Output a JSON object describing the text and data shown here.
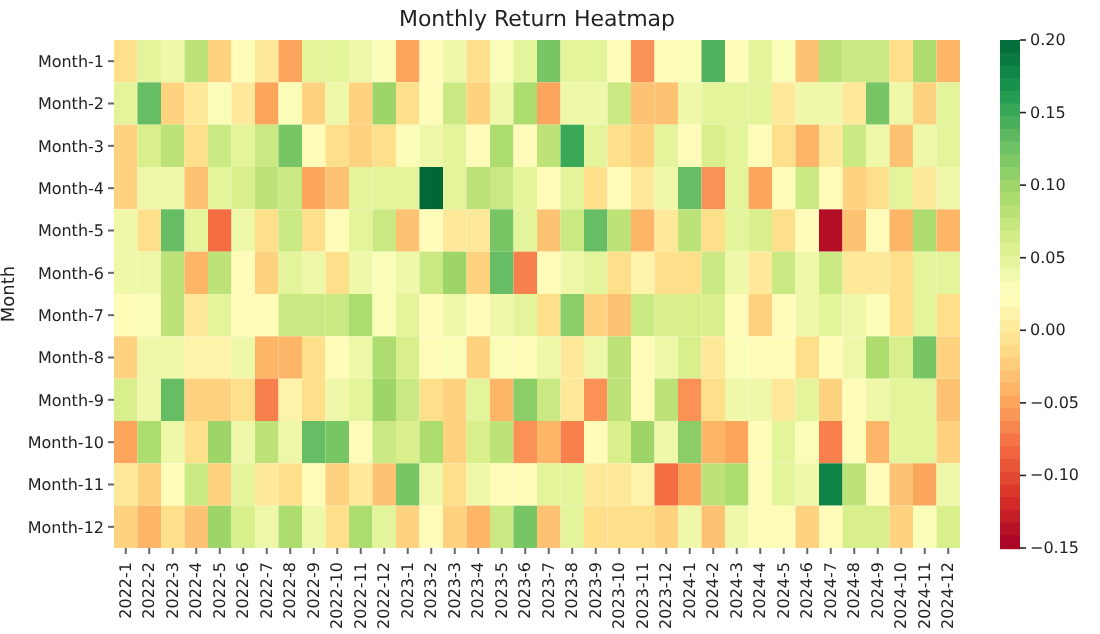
{
  "chart_data": {
    "type": "heatmap",
    "title": "Monthly Return Heatmap",
    "ylabel": "Month",
    "categories": [
      "2022-1",
      "2022-2",
      "2022-3",
      "2022-4",
      "2022-5",
      "2022-6",
      "2022-7",
      "2022-8",
      "2022-9",
      "2022-10",
      "2022-11",
      "2022-12",
      "2023-1",
      "2023-2",
      "2023-3",
      "2023-4",
      "2023-5",
      "2023-6",
      "2023-7",
      "2023-8",
      "2023-9",
      "2023-10",
      "2023-11",
      "2023-12",
      "2024-1",
      "2024-2",
      "2024-3",
      "2024-4",
      "2024-5",
      "2024-6",
      "2024-7",
      "2024-8",
      "2024-9",
      "2024-10",
      "2024-11",
      "2024-12"
    ],
    "y_categories": [
      "Month-1",
      "Month-2",
      "Month-3",
      "Month-4",
      "Month-5",
      "Month-6",
      "Month-7",
      "Month-8",
      "Month-9",
      "Month-10",
      "Month-11",
      "Month-12"
    ],
    "cells": [
      [
        -0.01,
        0.05,
        0.04,
        0.08,
        -0.02,
        0.02,
        0.0,
        -0.05,
        0.05,
        0.05,
        0.04,
        0.03,
        -0.05,
        0.02,
        0.04,
        -0.01,
        0.03,
        0.05,
        0.12,
        0.05,
        0.05,
        0.02,
        -0.06,
        0.02,
        0.03,
        0.14,
        0.02,
        0.05,
        0.03,
        -0.03,
        0.08,
        0.07,
        0.07,
        -0.01,
        0.09,
        -0.04
      ],
      [
        0.05,
        0.13,
        -0.02,
        0.0,
        0.03,
        0.0,
        -0.05,
        0.03,
        -0.02,
        0.04,
        -0.02,
        0.1,
        -0.01,
        0.02,
        0.07,
        -0.02,
        0.04,
        0.09,
        -0.05,
        0.04,
        0.04,
        0.07,
        -0.03,
        -0.03,
        0.04,
        0.05,
        0.05,
        0.05,
        0.0,
        0.04,
        0.04,
        0.0,
        0.12,
        0.04,
        -0.02,
        0.05
      ],
      [
        -0.02,
        0.06,
        0.08,
        -0.01,
        0.07,
        0.05,
        0.07,
        0.12,
        0.02,
        -0.01,
        -0.02,
        -0.01,
        0.03,
        0.04,
        0.05,
        0.02,
        0.09,
        0.02,
        0.08,
        0.15,
        0.05,
        -0.01,
        -0.02,
        0.05,
        0.02,
        0.06,
        0.05,
        0.02,
        -0.01,
        -0.04,
        0.0,
        0.07,
        0.04,
        -0.03,
        0.04,
        0.05
      ],
      [
        -0.02,
        0.04,
        0.04,
        -0.03,
        0.05,
        0.06,
        0.08,
        0.07,
        -0.05,
        -0.03,
        0.05,
        0.05,
        0.05,
        0.2,
        0.05,
        0.08,
        0.07,
        0.05,
        0.02,
        0.05,
        -0.01,
        0.02,
        0.0,
        0.04,
        0.13,
        -0.06,
        0.05,
        -0.05,
        0.02,
        0.07,
        0.02,
        -0.02,
        -0.01,
        0.05,
        0.0,
        0.04
      ],
      [
        0.04,
        -0.01,
        0.13,
        0.05,
        -0.08,
        0.04,
        -0.01,
        0.07,
        -0.01,
        0.02,
        0.05,
        0.07,
        -0.03,
        0.02,
        0.0,
        0.0,
        0.12,
        0.05,
        -0.03,
        0.07,
        0.13,
        0.08,
        -0.04,
        0.0,
        0.08,
        -0.01,
        0.05,
        0.06,
        -0.01,
        0.02,
        -0.14,
        -0.03,
        0.02,
        -0.04,
        0.09,
        -0.04
      ],
      [
        0.04,
        0.04,
        0.08,
        -0.04,
        0.08,
        0.02,
        -0.02,
        0.05,
        0.04,
        -0.01,
        0.04,
        0.03,
        0.04,
        0.07,
        0.1,
        -0.02,
        0.13,
        -0.07,
        0.02,
        0.04,
        0.05,
        -0.01,
        0.01,
        -0.01,
        -0.01,
        0.07,
        0.04,
        0.0,
        0.07,
        0.04,
        0.07,
        0.0,
        0.0,
        -0.01,
        0.05,
        0.05
      ],
      [
        0.02,
        0.03,
        0.08,
        0.0,
        0.05,
        0.02,
        0.02,
        0.07,
        0.07,
        0.07,
        0.09,
        0.03,
        0.05,
        0.02,
        0.04,
        0.02,
        0.04,
        0.05,
        -0.01,
        0.11,
        -0.02,
        -0.03,
        0.07,
        0.06,
        0.06,
        0.06,
        0.02,
        -0.02,
        0.02,
        0.04,
        0.05,
        0.04,
        0.03,
        -0.01,
        0.05,
        -0.01
      ],
      [
        -0.02,
        0.04,
        0.04,
        0.01,
        0.01,
        0.04,
        -0.04,
        -0.04,
        -0.01,
        0.02,
        0.04,
        0.09,
        0.06,
        0.02,
        0.03,
        -0.02,
        0.03,
        0.02,
        0.04,
        0.0,
        0.04,
        0.08,
        0.02,
        0.04,
        0.06,
        0.0,
        0.03,
        0.02,
        0.02,
        -0.01,
        0.02,
        0.04,
        0.09,
        0.06,
        0.12,
        -0.02
      ],
      [
        0.06,
        0.04,
        0.13,
        -0.02,
        -0.02,
        -0.01,
        -0.07,
        0.01,
        -0.01,
        0.04,
        0.05,
        0.1,
        0.07,
        -0.01,
        -0.02,
        0.05,
        -0.04,
        0.11,
        0.07,
        0.0,
        -0.06,
        0.08,
        0.02,
        0.08,
        -0.06,
        -0.01,
        0.04,
        0.04,
        0.0,
        0.05,
        -0.02,
        0.02,
        0.04,
        0.05,
        0.05,
        -0.03
      ],
      [
        -0.05,
        0.09,
        0.04,
        -0.01,
        0.1,
        0.04,
        0.08,
        0.04,
        0.13,
        0.12,
        0.02,
        0.07,
        0.06,
        0.09,
        -0.02,
        0.06,
        0.08,
        -0.06,
        -0.04,
        -0.07,
        0.02,
        0.06,
        0.1,
        0.04,
        0.11,
        -0.04,
        -0.05,
        0.02,
        0.05,
        0.03,
        -0.07,
        0.02,
        -0.04,
        0.05,
        0.05,
        -0.02
      ],
      [
        0.0,
        -0.02,
        0.02,
        0.07,
        -0.02,
        0.05,
        0.0,
        -0.01,
        0.02,
        -0.02,
        0.0,
        -0.03,
        0.12,
        0.04,
        -0.01,
        0.04,
        0.02,
        0.02,
        0.05,
        0.05,
        0.0,
        0.0,
        0.01,
        -0.08,
        -0.05,
        0.08,
        0.09,
        0.02,
        0.05,
        0.04,
        0.18,
        0.08,
        0.02,
        -0.03,
        -0.05,
        0.04
      ],
      [
        -0.02,
        -0.04,
        -0.01,
        -0.03,
        0.1,
        0.06,
        0.04,
        0.09,
        0.04,
        -0.01,
        0.09,
        0.05,
        -0.02,
        0.02,
        -0.02,
        -0.04,
        0.07,
        0.12,
        -0.03,
        0.05,
        -0.01,
        -0.01,
        -0.01,
        -0.02,
        0.04,
        -0.03,
        0.04,
        0.02,
        0.02,
        -0.02,
        0.02,
        0.06,
        0.06,
        -0.02,
        0.03,
        0.06
      ]
    ],
    "clim": [
      -0.15,
      0.2
    ],
    "cticks": [
      {
        "value": -0.15,
        "label": "−0.15"
      },
      {
        "value": -0.1,
        "label": "−0.10"
      },
      {
        "value": -0.05,
        "label": "−0.05"
      },
      {
        "value": 0.0,
        "label": "0.00"
      },
      {
        "value": 0.05,
        "label": "0.05"
      },
      {
        "value": 0.1,
        "label": "0.10"
      },
      {
        "value": 0.15,
        "label": "0.15"
      },
      {
        "value": 0.2,
        "label": "0.20"
      }
    ]
  }
}
